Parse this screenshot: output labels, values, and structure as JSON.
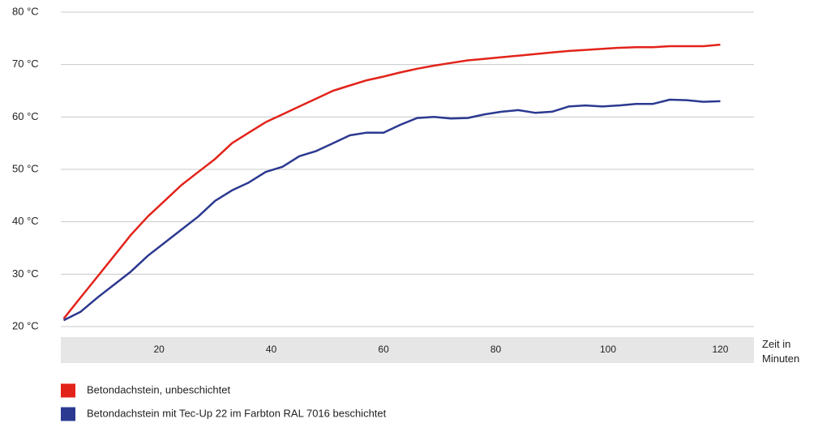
{
  "chart_data": {
    "type": "line",
    "x_label": "Zeit in Minuten",
    "x": [
      3,
      6,
      9,
      12,
      15,
      18,
      21,
      24,
      27,
      30,
      33,
      36,
      39,
      42,
      45,
      48,
      51,
      54,
      57,
      60,
      63,
      66,
      69,
      72,
      75,
      78,
      81,
      84,
      87,
      90,
      93,
      96,
      99,
      102,
      105,
      108,
      111,
      114,
      117,
      120
    ],
    "series": [
      {
        "name": "Betondachstein, unbeschichtet",
        "color": "#e2231a",
        "values": [
          21.5,
          25.5,
          29.5,
          33.5,
          37.5,
          41,
          44,
          47,
          49.5,
          52,
          55,
          57,
          59,
          60.5,
          62,
          63.5,
          65,
          66,
          67,
          67.7,
          68.5,
          69.2,
          69.8,
          70.3,
          70.8,
          71.1,
          71.4,
          71.7,
          72,
          72.3,
          72.6,
          72.8,
          73,
          73.2,
          73.3,
          73.3,
          73.5,
          73.5,
          73.5,
          73.8
        ]
      },
      {
        "name": "Betondachstein mit Tec-Up 22 im Farbton RAL 7016 beschichtet",
        "color": "#2b3990",
        "values": [
          21.2,
          22.8,
          25.5,
          28,
          30.5,
          33.5,
          36,
          38.5,
          41,
          44,
          46,
          47.5,
          49.5,
          50.5,
          52.5,
          53.5,
          55,
          56.5,
          57,
          57,
          58.5,
          59.8,
          60,
          59.7,
          59.8,
          60.5,
          61,
          61.3,
          60.8,
          61,
          62,
          62.2,
          62,
          62.2,
          62.5,
          62.5,
          63.3,
          63.2,
          62.9,
          63
        ]
      }
    ],
    "xlim": [
      2.5,
      126
    ],
    "xticks": [
      20,
      40,
      60,
      80,
      100,
      120
    ],
    "ylim": [
      20,
      80
    ],
    "yticks": [
      {
        "value": 20,
        "label": "20 °C"
      },
      {
        "value": 30,
        "label": "30 °C"
      },
      {
        "value": 40,
        "label": "40 °C"
      },
      {
        "value": 50,
        "label": "50 °C"
      },
      {
        "value": 60,
        "label": "60 °C"
      },
      {
        "value": 70,
        "label": "70 °C"
      },
      {
        "value": 80,
        "label": "80 °C"
      }
    ],
    "grid": true
  }
}
